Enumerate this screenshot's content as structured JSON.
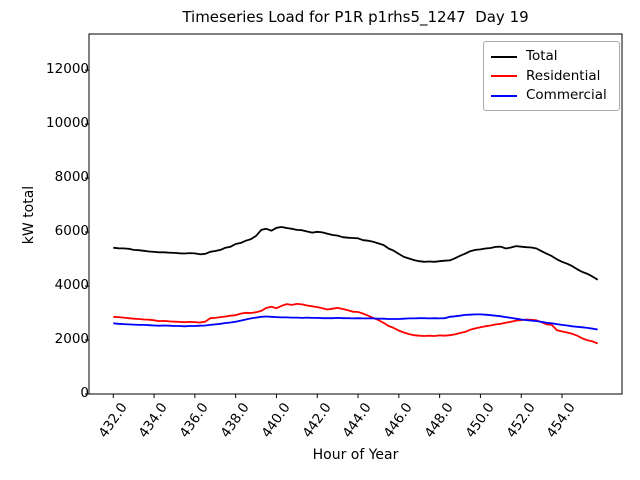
{
  "chart_data": {
    "type": "line",
    "title": "Timeseries Load for P1R p1rhs5_1247  Day 19",
    "xlabel": "Hour of Year",
    "ylabel": "kW total",
    "grid": false,
    "legend_position": "upper right",
    "xlim": [
      430.81,
      456.94
    ],
    "ylim": [
      0,
      13340
    ],
    "x_start": 432.0,
    "x_step": 0.25,
    "xticks": {
      "values": [
        432,
        434,
        436,
        438,
        440,
        442,
        444,
        446,
        448,
        450,
        452,
        454
      ],
      "labels": [
        "432.0",
        "434.0",
        "436.0",
        "438.0",
        "440.0",
        "442.0",
        "444.0",
        "446.0",
        "448.0",
        "450.0",
        "452.0",
        "454.0"
      ]
    },
    "yticks": {
      "values": [
        0,
        2000,
        4000,
        6000,
        8000,
        10000,
        12000
      ],
      "labels": [
        "0",
        "2000",
        "4000",
        "6000",
        "8000",
        "10000",
        "12000"
      ]
    },
    "series": [
      {
        "name": "Total",
        "color": "#000000",
        "values": [
          5420,
          5400,
          5395,
          5380,
          5340,
          5330,
          5305,
          5280,
          5265,
          5250,
          5250,
          5235,
          5230,
          5215,
          5205,
          5220,
          5210,
          5175,
          5190,
          5270,
          5300,
          5340,
          5420,
          5460,
          5560,
          5600,
          5680,
          5740,
          5860,
          6080,
          6120,
          6050,
          6160,
          6190,
          6150,
          6120,
          6080,
          6070,
          6020,
          5980,
          6010,
          5990,
          5940,
          5890,
          5870,
          5810,
          5790,
          5780,
          5770,
          5700,
          5680,
          5640,
          5580,
          5520,
          5390,
          5310,
          5190,
          5080,
          5020,
          4960,
          4920,
          4900,
          4910,
          4900,
          4920,
          4940,
          4950,
          5030,
          5120,
          5200,
          5290,
          5340,
          5360,
          5390,
          5410,
          5450,
          5460,
          5390,
          5430,
          5480,
          5460,
          5440,
          5430,
          5390,
          5290,
          5200,
          5110,
          4990,
          4900,
          4830,
          4740,
          4620,
          4520,
          4450,
          4350,
          4230
        ]
      },
      {
        "name": "Residential",
        "color": "#ff0000",
        "values": [
          2860,
          2850,
          2830,
          2810,
          2790,
          2780,
          2760,
          2755,
          2730,
          2700,
          2710,
          2690,
          2680,
          2670,
          2660,
          2670,
          2660,
          2650,
          2680,
          2810,
          2820,
          2850,
          2870,
          2900,
          2920,
          2980,
          3010,
          3000,
          3030,
          3080,
          3190,
          3230,
          3180,
          3270,
          3330,
          3300,
          3340,
          3320,
          3280,
          3250,
          3220,
          3180,
          3130,
          3160,
          3190,
          3150,
          3100,
          3050,
          3040,
          2980,
          2900,
          2820,
          2740,
          2640,
          2520,
          2450,
          2350,
          2280,
          2220,
          2180,
          2160,
          2150,
          2160,
          2150,
          2170,
          2160,
          2180,
          2210,
          2260,
          2300,
          2380,
          2430,
          2470,
          2510,
          2540,
          2580,
          2600,
          2640,
          2680,
          2720,
          2740,
          2760,
          2750,
          2730,
          2660,
          2580,
          2560,
          2360,
          2320,
          2280,
          2230,
          2160,
          2060,
          1990,
          1950,
          1870
        ]
      },
      {
        "name": "Commercial",
        "color": "#0000ff",
        "values": [
          2620,
          2600,
          2590,
          2580,
          2570,
          2560,
          2560,
          2550,
          2540,
          2530,
          2540,
          2530,
          2520,
          2520,
          2510,
          2520,
          2520,
          2530,
          2540,
          2560,
          2580,
          2600,
          2630,
          2650,
          2680,
          2720,
          2760,
          2800,
          2830,
          2860,
          2870,
          2860,
          2850,
          2840,
          2840,
          2830,
          2830,
          2820,
          2830,
          2820,
          2820,
          2810,
          2810,
          2810,
          2820,
          2810,
          2810,
          2800,
          2810,
          2800,
          2800,
          2800,
          2790,
          2790,
          2780,
          2780,
          2780,
          2790,
          2800,
          2800,
          2810,
          2810,
          2800,
          2810,
          2800,
          2810,
          2860,
          2880,
          2900,
          2930,
          2940,
          2950,
          2950,
          2940,
          2920,
          2900,
          2880,
          2850,
          2820,
          2790,
          2760,
          2740,
          2720,
          2700,
          2670,
          2640,
          2620,
          2590,
          2560,
          2540,
          2510,
          2490,
          2470,
          2450,
          2420,
          2390
        ]
      }
    ]
  }
}
